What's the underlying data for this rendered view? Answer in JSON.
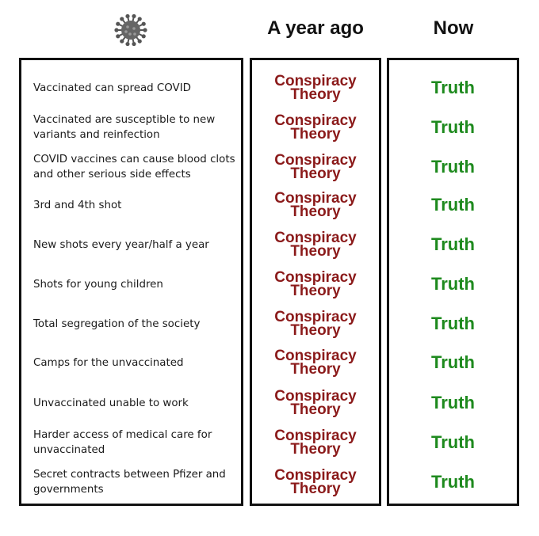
{
  "header": {
    "col_ago": "A year ago",
    "col_now": "Now",
    "icon": "virus-icon"
  },
  "colors": {
    "conspiracy": "#8b1a1a",
    "truth": "#1e8a1e",
    "border": "#111111"
  },
  "rows": [
    {
      "item": "Vaccinated can spread COVID",
      "ago": "Conspiracy Theory",
      "now": "Truth"
    },
    {
      "item": "Vaccinated are susceptible to new variants and reinfection",
      "ago": "Conspiracy Theory",
      "now": "Truth"
    },
    {
      "item": "COVID vaccines can cause blood clots and other serious side effects",
      "ago": "Conspiracy Theory",
      "now": "Truth"
    },
    {
      "item": "3rd and 4th shot",
      "ago": "Conspiracy Theory",
      "now": "Truth"
    },
    {
      "item": "New shots every year/half a year",
      "ago": "Conspiracy Theory",
      "now": "Truth"
    },
    {
      "item": "Shots for young children",
      "ago": "Conspiracy Theory",
      "now": "Truth"
    },
    {
      "item": "Total segregation of the society",
      "ago": "Conspiracy Theory",
      "now": "Truth"
    },
    {
      "item": "Camps for the unvaccinated",
      "ago": "Conspiracy Theory",
      "now": "Truth"
    },
    {
      "item": "Unvaccinated unable to work",
      "ago": "Conspiracy Theory",
      "now": "Truth"
    },
    {
      "item": "Harder access of medical care for unvaccinated",
      "ago": "Conspiracy Theory",
      "now": "Truth"
    },
    {
      "item": "Secret contracts between Pfizer and governments",
      "ago": "Conspiracy Theory",
      "now": "Truth"
    }
  ]
}
